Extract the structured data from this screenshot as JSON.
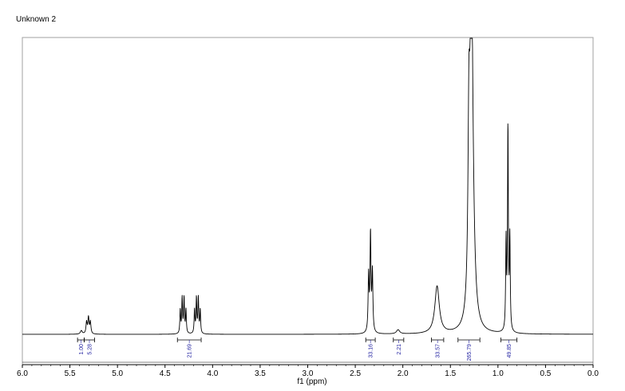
{
  "page_title": "Unknown 2",
  "chart_data": {
    "type": "line",
    "xlabel": "f1 (ppm)",
    "xlim": [
      6.0,
      0.0
    ],
    "x_reversed": true,
    "x_ticks": [
      {
        "value": 6.0,
        "label": "6.0"
      },
      {
        "value": 5.5,
        "label": "5.5"
      },
      {
        "value": 5.0,
        "label": "5.0"
      },
      {
        "value": 4.5,
        "label": "4.5"
      },
      {
        "value": 4.0,
        "label": "4.0"
      },
      {
        "value": 3.5,
        "label": "3.5"
      },
      {
        "value": 3.0,
        "label": "3.0"
      },
      {
        "value": 2.5,
        "label": "2.5"
      },
      {
        "value": 2.0,
        "label": "2.0"
      },
      {
        "value": 1.5,
        "label": "1.5"
      },
      {
        "value": 1.0,
        "label": "1.0"
      },
      {
        "value": 0.5,
        "label": "0.5"
      },
      {
        "value": 0.0,
        "label": "0.0"
      }
    ],
    "y_axis_shown": false,
    "ylim": [
      0,
      1.0
    ],
    "peaks": [
      {
        "ppm": 5.38,
        "height": 0.012,
        "width": 0.012
      },
      {
        "ppm": 5.285,
        "height": 0.04,
        "width": 0.007
      },
      {
        "ppm": 5.305,
        "height": 0.055,
        "width": 0.007
      },
      {
        "ppm": 5.325,
        "height": 0.04,
        "width": 0.007
      },
      {
        "ppm": 4.34,
        "height": 0.08,
        "width": 0.005
      },
      {
        "ppm": 4.32,
        "height": 0.12,
        "width": 0.005
      },
      {
        "ppm": 4.3,
        "height": 0.12,
        "width": 0.005
      },
      {
        "ppm": 4.28,
        "height": 0.08,
        "width": 0.005
      },
      {
        "ppm": 4.19,
        "height": 0.08,
        "width": 0.005
      },
      {
        "ppm": 4.17,
        "height": 0.12,
        "width": 0.005
      },
      {
        "ppm": 4.15,
        "height": 0.12,
        "width": 0.005
      },
      {
        "ppm": 4.13,
        "height": 0.08,
        "width": 0.005
      },
      {
        "ppm": 2.36,
        "height": 0.19,
        "width": 0.006
      },
      {
        "ppm": 2.34,
        "height": 0.33,
        "width": 0.006
      },
      {
        "ppm": 2.32,
        "height": 0.2,
        "width": 0.006
      },
      {
        "ppm": 2.05,
        "height": 0.014,
        "width": 0.02
      },
      {
        "ppm": 1.64,
        "height": 0.16,
        "width": 0.028
      },
      {
        "ppm": 1.305,
        "height": 0.6,
        "width": 0.012
      },
      {
        "ppm": 1.28,
        "height": 1.0,
        "width": 0.012
      },
      {
        "ppm": 1.27,
        "height": 0.45,
        "width": 0.025
      },
      {
        "ppm": 0.915,
        "height": 0.3,
        "width": 0.005
      },
      {
        "ppm": 0.895,
        "height": 0.69,
        "width": 0.005
      },
      {
        "ppm": 0.875,
        "height": 0.31,
        "width": 0.005
      }
    ],
    "integrals": [
      {
        "from": 5.42,
        "to": 5.35,
        "label": "1.00"
      },
      {
        "from": 5.35,
        "to": 5.24,
        "label": "5.28"
      },
      {
        "from": 4.37,
        "to": 4.12,
        "label": "21.69"
      },
      {
        "from": 2.39,
        "to": 2.29,
        "label": "33.16"
      },
      {
        "from": 2.1,
        "to": 1.99,
        "label": "2.21"
      },
      {
        "from": 1.7,
        "to": 1.57,
        "label": "33.57"
      },
      {
        "from": 1.42,
        "to": 1.19,
        "label": "265.79"
      },
      {
        "from": 0.97,
        "to": 0.8,
        "label": "49.85"
      }
    ]
  }
}
